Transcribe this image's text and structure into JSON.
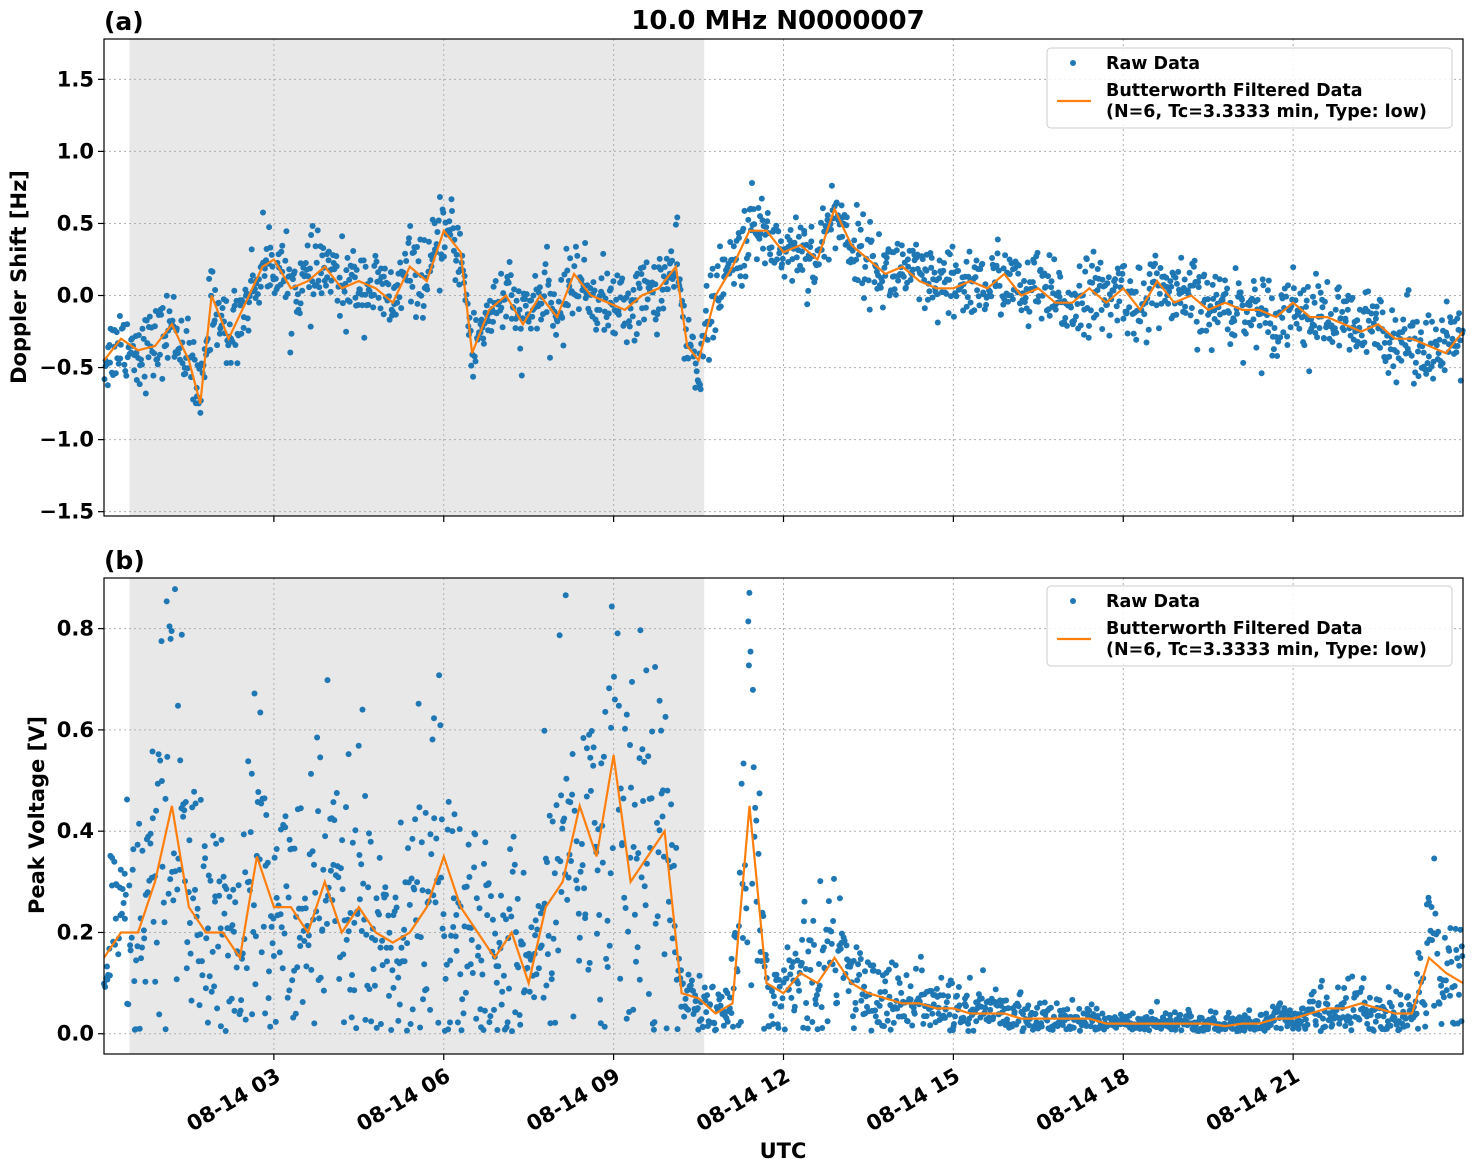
{
  "title": "10.0 MHz N0000007",
  "colors": {
    "raw": "#1f77b4",
    "filtered": "#ff7f0e",
    "night": "#e8e8e8",
    "grid": "#b0b0b0"
  },
  "chart_data": [
    {
      "type": "scatter",
      "panel_label": "(a)",
      "ylabel": "Doppler Shift [Hz]",
      "ylim": [
        -1.53,
        1.78
      ],
      "yticks": [
        -1.5,
        -1.0,
        -0.5,
        0.0,
        0.5,
        1.0,
        1.5
      ],
      "ytick_labels": [
        "−1.5",
        "−1.0",
        "−0.5",
        "0.0",
        "0.5",
        "1.0",
        "1.5"
      ],
      "xlim_hours": [
        0,
        24
      ],
      "shaded_hours": [
        0.45,
        10.6
      ],
      "grid": true,
      "legend": {
        "position": "top-right",
        "raw": "Raw Data",
        "filtered_line1": "Butterworth Filtered Data",
        "filtered_line2": "(N=6, Tc=3.3333 min, Type: low)"
      },
      "series": [
        {
          "name": "Butterworth Filtered Data",
          "x": [
            0,
            0.3,
            0.6,
            0.9,
            1.2,
            1.5,
            1.7,
            1.9,
            2.2,
            2.5,
            2.8,
            3.0,
            3.3,
            3.6,
            3.9,
            4.2,
            4.5,
            4.8,
            5.1,
            5.4,
            5.7,
            6.0,
            6.3,
            6.5,
            6.8,
            7.1,
            7.4,
            7.7,
            8.0,
            8.3,
            8.6,
            8.9,
            9.2,
            9.5,
            9.8,
            10.1,
            10.3,
            10.5,
            10.8,
            11.1,
            11.4,
            11.7,
            12.0,
            12.3,
            12.6,
            12.9,
            13.2,
            13.5,
            13.8,
            14.1,
            14.4,
            14.7,
            15.0,
            15.3,
            15.6,
            15.9,
            16.2,
            16.5,
            16.8,
            17.1,
            17.4,
            17.7,
            18.0,
            18.3,
            18.6,
            18.9,
            19.2,
            19.5,
            19.8,
            20.1,
            20.4,
            20.7,
            21.0,
            21.3,
            21.6,
            21.9,
            22.2,
            22.5,
            22.8,
            23.1,
            23.4,
            23.7,
            24.0
          ],
          "y": [
            -0.45,
            -0.3,
            -0.38,
            -0.35,
            -0.2,
            -0.45,
            -0.75,
            0.0,
            -0.3,
            -0.05,
            0.2,
            0.25,
            0.05,
            0.1,
            0.2,
            0.05,
            0.1,
            0.05,
            -0.05,
            0.2,
            0.1,
            0.45,
            0.3,
            -0.4,
            -0.1,
            0.0,
            -0.2,
            0.0,
            -0.15,
            0.15,
            0.0,
            -0.05,
            -0.1,
            0.0,
            0.05,
            0.2,
            -0.35,
            -0.45,
            0.0,
            0.2,
            0.45,
            0.45,
            0.3,
            0.35,
            0.25,
            0.6,
            0.35,
            0.25,
            0.15,
            0.2,
            0.1,
            0.05,
            0.05,
            0.1,
            0.05,
            0.15,
            0.0,
            0.05,
            -0.05,
            -0.05,
            0.05,
            -0.05,
            0.05,
            -0.1,
            0.1,
            -0.05,
            0.0,
            -0.1,
            -0.05,
            -0.1,
            -0.1,
            -0.15,
            -0.05,
            -0.15,
            -0.15,
            -0.2,
            -0.25,
            -0.2,
            -0.3,
            -0.3,
            -0.35,
            -0.4,
            -0.25
          ]
        }
      ]
    },
    {
      "type": "scatter",
      "panel_label": "(b)",
      "ylabel": "Peak Voltage [V]",
      "xlabel": "UTC",
      "ylim": [
        -0.04,
        0.9
      ],
      "yticks": [
        0.0,
        0.2,
        0.4,
        0.6,
        0.8
      ],
      "ytick_labels": [
        "0.0",
        "0.2",
        "0.4",
        "0.6",
        "0.8"
      ],
      "xlim_hours": [
        0,
        24
      ],
      "xticks_hours": [
        3,
        6,
        9,
        12,
        15,
        18,
        21
      ],
      "xtick_labels": [
        "08-14 03",
        "08-14 06",
        "08-14 09",
        "08-14 12",
        "08-14 15",
        "08-14 18",
        "08-14 21"
      ],
      "shaded_hours": [
        0.45,
        10.6
      ],
      "grid": true,
      "legend": {
        "position": "top-right",
        "raw": "Raw Data",
        "filtered_line1": "Butterworth Filtered Data",
        "filtered_line2": "(N=6, Tc=3.3333 min, Type: low)"
      },
      "series": [
        {
          "name": "Butterworth Filtered Data",
          "x": [
            0,
            0.3,
            0.6,
            0.9,
            1.2,
            1.5,
            1.8,
            2.1,
            2.4,
            2.7,
            3.0,
            3.3,
            3.6,
            3.9,
            4.2,
            4.5,
            4.8,
            5.1,
            5.4,
            5.7,
            6.0,
            6.3,
            6.6,
            6.9,
            7.2,
            7.5,
            7.8,
            8.1,
            8.4,
            8.7,
            9.0,
            9.3,
            9.6,
            9.9,
            10.2,
            10.5,
            10.8,
            11.1,
            11.4,
            11.7,
            12.0,
            12.3,
            12.6,
            12.9,
            13.2,
            13.5,
            13.8,
            14.1,
            14.4,
            14.7,
            15.0,
            15.3,
            15.6,
            15.9,
            16.2,
            16.5,
            16.8,
            17.1,
            17.4,
            17.7,
            18.0,
            18.3,
            18.6,
            18.9,
            19.2,
            19.5,
            19.8,
            20.1,
            20.4,
            20.7,
            21.0,
            21.3,
            21.6,
            21.9,
            22.2,
            22.5,
            22.8,
            23.1,
            23.4,
            23.7,
            24.0
          ],
          "y": [
            0.15,
            0.2,
            0.2,
            0.3,
            0.45,
            0.25,
            0.2,
            0.2,
            0.15,
            0.35,
            0.25,
            0.25,
            0.2,
            0.3,
            0.2,
            0.25,
            0.2,
            0.18,
            0.2,
            0.25,
            0.35,
            0.25,
            0.2,
            0.15,
            0.2,
            0.1,
            0.25,
            0.3,
            0.45,
            0.35,
            0.55,
            0.3,
            0.35,
            0.4,
            0.08,
            0.07,
            0.04,
            0.06,
            0.45,
            0.1,
            0.08,
            0.12,
            0.1,
            0.15,
            0.1,
            0.08,
            0.07,
            0.06,
            0.06,
            0.05,
            0.05,
            0.04,
            0.04,
            0.04,
            0.03,
            0.03,
            0.03,
            0.03,
            0.03,
            0.02,
            0.02,
            0.02,
            0.02,
            0.02,
            0.02,
            0.02,
            0.015,
            0.02,
            0.02,
            0.03,
            0.03,
            0.04,
            0.05,
            0.05,
            0.06,
            0.05,
            0.04,
            0.04,
            0.15,
            0.12,
            0.1
          ]
        }
      ]
    }
  ]
}
